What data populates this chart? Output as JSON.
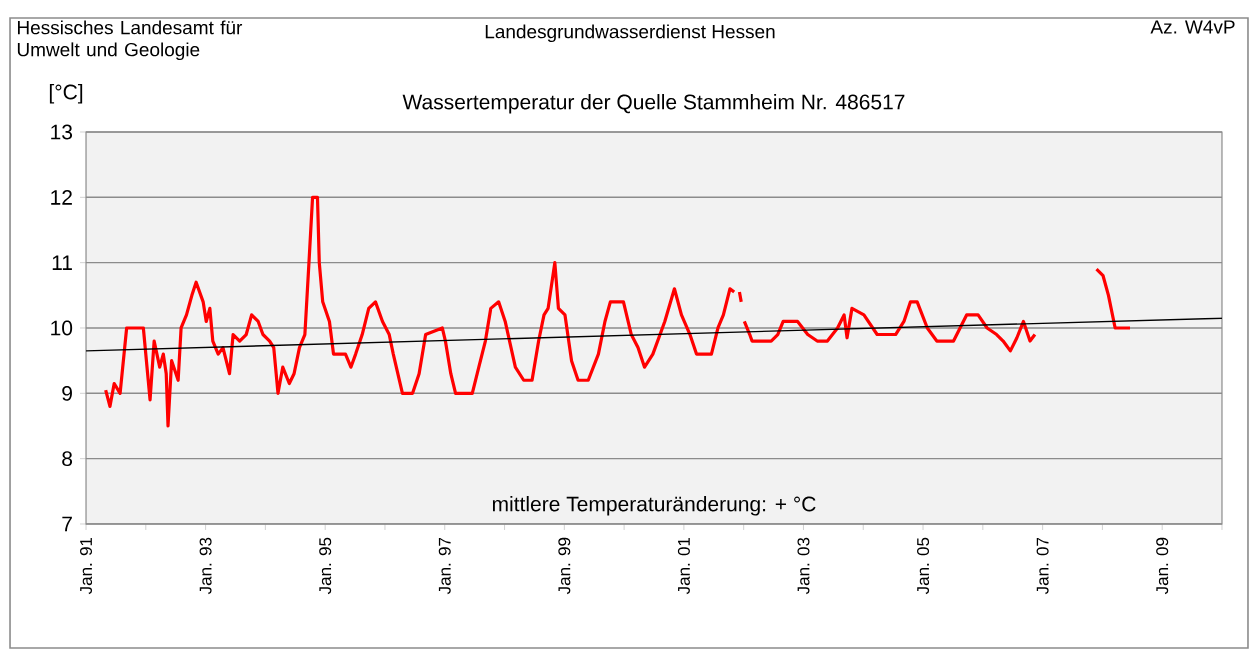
{
  "chart_data": {
    "type": "line",
    "title": "Wassertemperatur der Quelle Stammheim Nr. 486517",
    "ylabel": "[°C]",
    "annotations": [
      "Hessisches Landesamt für Umwelt und Geologie",
      "Landesgrundwasserdienst Hessen",
      "Az. W4vP",
      "mittlere Temperaturänderung: + °C"
    ],
    "xlim": [
      "1991-01-01",
      "2010-01-01"
    ],
    "ylim": [
      7,
      13
    ],
    "yticks": [
      7,
      8,
      9,
      10,
      11,
      12,
      13
    ],
    "xticks": [
      {
        "value": "1991-01-01",
        "label": "Jan. 91"
      },
      {
        "value": "1992-01-01",
        "label": null
      },
      {
        "value": "1993-01-01",
        "label": "Jan. 93"
      },
      {
        "value": "1994-01-01",
        "label": null
      },
      {
        "value": "1995-01-01",
        "label": "Jan. 95"
      },
      {
        "value": "1996-01-01",
        "label": null
      },
      {
        "value": "1997-01-01",
        "label": "Jan. 97"
      },
      {
        "value": "1998-01-01",
        "label": null
      },
      {
        "value": "1999-01-01",
        "label": "Jan. 99"
      },
      {
        "value": "2000-01-01",
        "label": null
      },
      {
        "value": "2001-01-01",
        "label": "Jan. 01"
      },
      {
        "value": "2002-01-01",
        "label": null
      },
      {
        "value": "2003-01-01",
        "label": "Jan. 03"
      },
      {
        "value": "2004-01-01",
        "label": null
      },
      {
        "value": "2005-01-01",
        "label": "Jan. 05"
      },
      {
        "value": "2006-01-01",
        "label": null
      },
      {
        "value": "2007-01-01",
        "label": "Jan. 07"
      },
      {
        "value": "2008-01-01",
        "label": null
      },
      {
        "value": "2009-01-01",
        "label": "Jan. 09"
      },
      {
        "value": "2010-01-01",
        "label": null
      }
    ],
    "grid": "y",
    "series": [
      {
        "type": "line",
        "color": "#ff0000",
        "x": [
          "1991-05-01",
          "1991-05-27",
          "1991-06-22",
          "1991-07-28",
          "1991-09-06",
          "1991-12-17",
          "1992-01-27",
          "1992-02-21",
          "1992-03-26",
          "1992-04-17",
          "1992-05-05",
          "1992-05-16",
          "1992-06-07",
          "1992-07-17",
          "1992-08-04",
          "1992-09-06",
          "1992-10-09",
          "1992-11-04",
          "1992-12-17",
          "1993-01-05",
          "1993-01-27",
          "1993-02-14",
          "1993-03-19",
          "1993-04-17",
          "1993-05-27",
          "1993-06-18",
          "1993-07-28",
          "1993-09-06",
          "1993-10-09",
          "1993-11-18",
          "1993-12-17",
          "1994-01-27",
          "1994-02-21",
          "1994-03-19",
          "1994-04-17",
          "1994-05-27",
          "1994-06-25",
          "1994-07-28",
          "1994-08-30",
          "1994-09-24",
          "1994-10-16",
          "1994-11-15",
          "1994-11-26",
          "1994-12-17",
          "1995-01-27",
          "1995-02-21",
          "1995-05-05",
          "1995-06-07",
          "1995-07-06",
          "1995-08-15",
          "1995-09-24",
          "1995-11-04",
          "1995-12-17",
          "1996-01-27",
          "1996-02-21",
          "1996-04-17",
          "1996-06-18",
          "1996-07-28",
          "1996-09-06",
          "1996-12-17",
          "1997-01-05",
          "1997-02-07",
          "1997-03-08",
          "1997-06-18",
          "1997-07-28",
          "1997-09-06",
          "1997-10-09",
          "1997-11-26",
          "1998-01-05",
          "1998-03-08",
          "1998-04-28",
          "1998-06-18",
          "1998-07-28",
          "1998-08-30",
          "1998-09-24",
          "1998-11-04",
          "1998-11-26",
          "1999-01-05",
          "1999-02-14",
          "1999-03-26",
          "1999-05-27",
          "1999-07-28",
          "1999-09-06",
          "1999-10-09",
          "1999-12-28",
          "2000-02-14",
          "2000-03-26",
          "2000-05-05",
          "2000-06-25",
          "2000-09-06",
          "2000-11-04",
          "2000-12-17",
          "2001-02-07",
          "2001-03-19",
          "2001-06-18",
          "2001-07-28",
          "2001-08-30",
          "2001-10-09",
          "2001-11-04",
          "2001-11-18",
          "2001-12-06",
          "2001-12-17",
          "2001-12-25",
          "2002-01-05",
          "2002-02-07",
          "2002-02-21",
          "2002-06-18",
          "2002-07-28",
          "2002-08-30",
          "2002-11-26",
          "2003-01-27",
          "2003-03-26",
          "2003-05-27",
          "2003-07-28",
          "2003-09-06",
          "2003-09-24",
          "2003-10-24",
          "2004-01-05",
          "2004-03-26",
          "2004-07-17",
          "2004-09-06",
          "2004-10-16",
          "2004-11-26",
          "2005-01-27",
          "2005-03-26",
          "2005-07-06",
          "2005-08-15",
          "2005-09-24",
          "2005-12-03",
          "2006-01-27",
          "2006-03-26",
          "2006-05-05",
          "2006-06-18",
          "2006-07-28",
          "2006-09-06",
          "2006-10-16",
          "2006-11-15",
          "2007-05-27",
          "2007-11-26",
          "2008-01-05",
          "2008-02-07",
          "2008-03-19",
          "2008-06-18"
        ],
        "values": [
          9.05,
          8.8,
          9.15,
          9.0,
          10.0,
          10.0,
          8.9,
          9.8,
          9.4,
          9.6,
          9.3,
          8.5,
          9.5,
          9.2,
          10.0,
          10.2,
          10.5,
          10.7,
          10.4,
          10.1,
          10.3,
          9.8,
          9.6,
          9.7,
          9.3,
          9.9,
          9.8,
          9.9,
          10.2,
          10.1,
          9.9,
          9.8,
          9.7,
          9.0,
          9.4,
          9.15,
          9.3,
          9.7,
          9.9,
          11.0,
          12.0,
          12.0,
          11.0,
          10.4,
          10.1,
          9.6,
          9.6,
          9.4,
          9.6,
          9.9,
          10.3,
          10.4,
          10.1,
          9.9,
          9.6,
          9.0,
          9.0,
          9.3,
          9.9,
          10.0,
          9.8,
          9.3,
          9.0,
          9.0,
          9.4,
          9.8,
          10.3,
          10.4,
          10.1,
          9.4,
          9.2,
          9.2,
          9.8,
          10.2,
          10.3,
          11.0,
          10.3,
          10.2,
          9.5,
          9.2,
          9.2,
          9.6,
          10.1,
          10.4,
          10.4,
          9.9,
          9.7,
          9.4,
          9.6,
          10.1,
          10.6,
          10.2,
          9.9,
          9.6,
          9.6,
          10.0,
          10.2,
          10.6,
          10.55,
          null,
          10.55,
          10.4,
          null,
          10.1,
          9.9,
          9.8,
          9.8,
          9.9,
          10.1,
          10.1,
          9.9,
          9.8,
          9.8,
          10.0,
          10.2,
          9.85,
          10.3,
          10.2,
          9.9,
          9.9,
          10.1,
          10.4,
          10.4,
          10.0,
          9.8,
          9.8,
          10.0,
          10.2,
          10.2,
          10.0,
          9.9,
          9.8,
          9.65,
          9.85,
          10.1,
          9.8,
          9.9,
          null,
          10.9,
          10.8,
          10.5,
          10.0,
          10.0
        ]
      },
      {
        "type": "line",
        "color": "#000000",
        "x": [
          "1991-01-01",
          "2010-01-01"
        ],
        "values": [
          9.65,
          10.15
        ]
      }
    ]
  }
}
